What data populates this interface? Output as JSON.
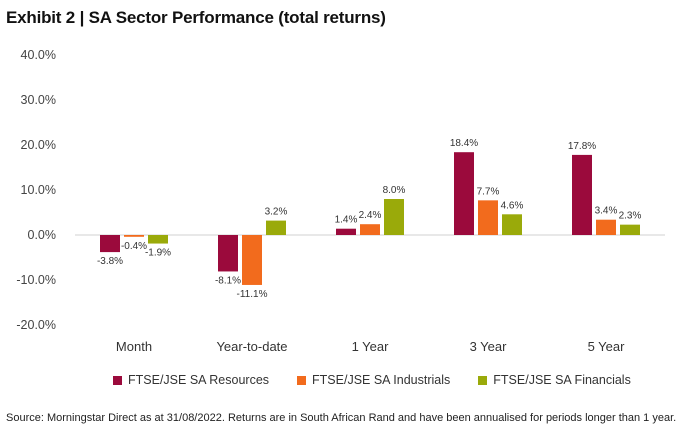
{
  "header": {
    "title": "Exhibit 2 | SA Sector Performance (total returns)"
  },
  "footer": {
    "source": "Source: Morningstar Direct as at 31/08/2022. Returns are in South African Rand and have been annualised for periods longer than 1 year."
  },
  "chart_data": {
    "type": "bar",
    "title": "Exhibit 2 | SA Sector Performance (total returns)",
    "xlabel": "",
    "ylabel": "",
    "ylim": [
      -20,
      40
    ],
    "yticks": [
      40,
      30,
      20,
      10,
      0,
      -10,
      -20
    ],
    "ytick_labels": [
      "40.0%",
      "30.0%",
      "20.0%",
      "10.0%",
      "0.0%",
      "-10.0%",
      "-20.0%"
    ],
    "grid": false,
    "legend_position": "bottom",
    "categories": [
      "Month",
      "Year-to-date",
      "1 Year",
      "3 Year",
      "5 Year"
    ],
    "series": [
      {
        "name": "FTSE/JSE SA Resources",
        "color": "#9B0A3C",
        "values": [
          -3.8,
          -8.1,
          1.4,
          18.4,
          17.8
        ],
        "labels": [
          "-3.8%",
          "-8.1%",
          "1.4%",
          "18.4%",
          "17.8%"
        ]
      },
      {
        "name": "FTSE/JSE SA Industrials",
        "color": "#F26B1D",
        "values": [
          -0.4,
          -11.1,
          2.4,
          7.7,
          3.4
        ],
        "labels": [
          "-0.4%",
          "-11.1%",
          "2.4%",
          "7.7%",
          "3.4%"
        ]
      },
      {
        "name": "FTSE/JSE SA Financials",
        "color": "#9AAA0A",
        "values": [
          -1.9,
          3.2,
          8.0,
          4.6,
          2.3
        ],
        "labels": [
          "-1.9%",
          "3.2%",
          "8.0%",
          "4.6%",
          "2.3%"
        ]
      }
    ]
  }
}
